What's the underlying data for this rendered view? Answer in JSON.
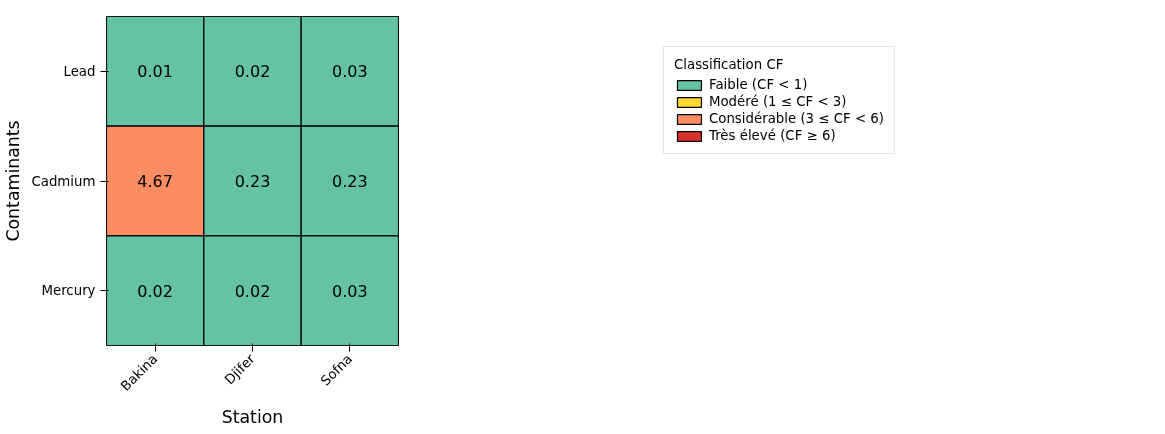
{
  "chart_data": {
    "type": "heatmap",
    "xlabel": "Station",
    "ylabel": "Contaminants",
    "legend_title": "Classification CF",
    "legend": "top right",
    "categories": [
      "Bakina",
      "Djifer",
      "Sofna"
    ],
    "y_categories": [
      "Lead",
      "Cadmium",
      "Mercury"
    ],
    "cells": [
      [
        0.01,
        0.02,
        0.03
      ],
      [
        4.67,
        0.23,
        0.23
      ],
      [
        0.02,
        0.02,
        0.03
      ]
    ],
    "colors": [
      [
        "#66c2a5",
        "#66c2a5",
        "#66c2a5"
      ],
      [
        "#fc8d62",
        "#66c2a5",
        "#66c2a5"
      ],
      [
        "#66c2a5",
        "#66c2a5",
        "#66c2a5"
      ]
    ],
    "data_labels": true,
    "series": [
      {
        "name": "Faible (CF < 1)",
        "color": "#66c2a5",
        "values": [
          null,
          null,
          null
        ]
      },
      {
        "name": "Modéré (1 ≤ CF < 3)",
        "color": "#ffd92f",
        "values": [
          null,
          null,
          null
        ]
      },
      {
        "name": "Considérable (3 ≤ CF < 6)",
        "color": "#fc8d62",
        "values": [
          null,
          null,
          null
        ]
      },
      {
        "name": "Très élevé (CF ≥ 6)",
        "color": "#d73027",
        "values": [
          null,
          null,
          null
        ]
      }
    ]
  }
}
